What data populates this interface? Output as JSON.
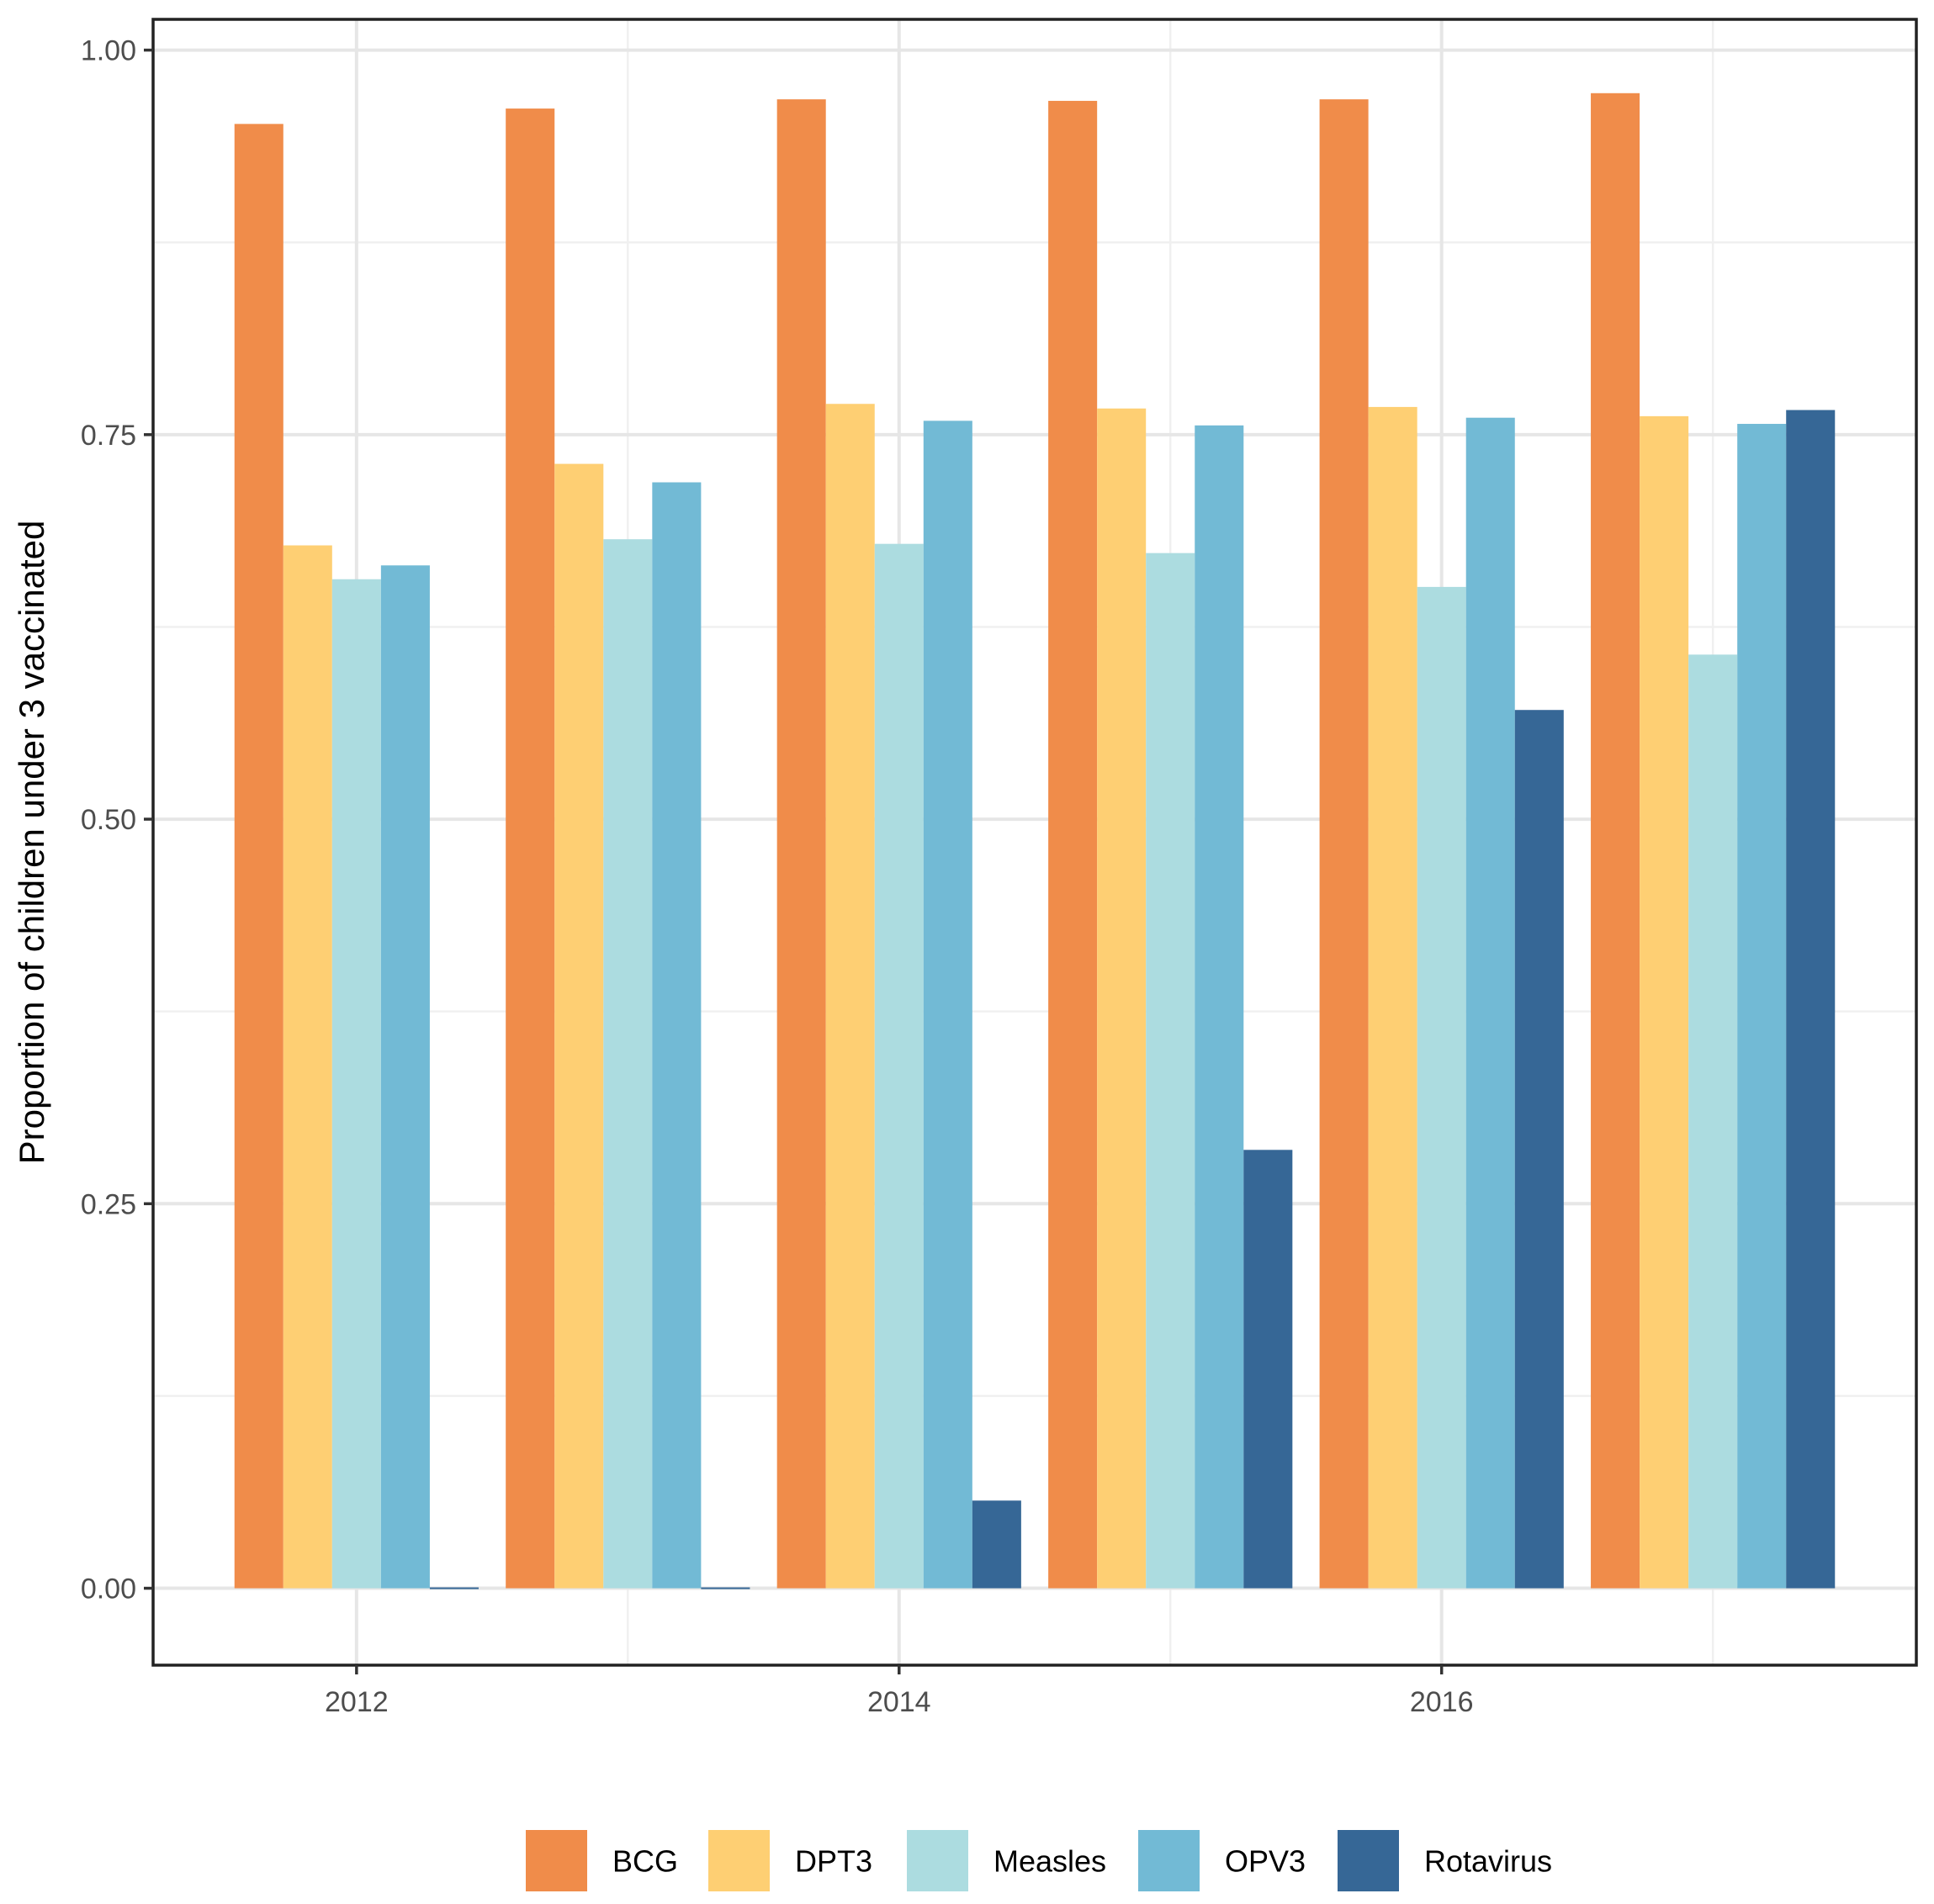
{
  "chart_data": {
    "type": "bar",
    "title": "",
    "xlabel": "",
    "ylabel": "Proportion of children under 3 vaccinated",
    "ylim": [
      -0.05,
      1.02
    ],
    "grid": true,
    "legend_position": "bottom",
    "x_years": [
      2012,
      2013,
      2014,
      2015,
      2016,
      2017
    ],
    "x_ticks": [
      2012,
      2014,
      2016
    ],
    "x_tick_labels": [
      "2012",
      "2014",
      "2016"
    ],
    "y_ticks": [
      0,
      0.25,
      0.5,
      0.75,
      1.0
    ],
    "y_tick_labels": [
      "0.00",
      "0.25",
      "0.50",
      "0.75",
      "1.00"
    ],
    "series": [
      {
        "name": "BCG",
        "color": "#F08C4A",
        "values": [
          0.952,
          0.962,
          0.968,
          0.967,
          0.968,
          0.972
        ]
      },
      {
        "name": "DPT3",
        "color": "#FECF73",
        "values": [
          0.678,
          0.731,
          0.77,
          0.767,
          0.768,
          0.762
        ]
      },
      {
        "name": "Measles",
        "color": "#ACDCE0",
        "values": [
          0.656,
          0.682,
          0.679,
          0.673,
          0.651,
          0.607
        ]
      },
      {
        "name": "OPV3",
        "color": "#72BAD5",
        "values": [
          0.665,
          0.719,
          0.759,
          0.756,
          0.761,
          0.757
        ]
      },
      {
        "name": "Rotavirus",
        "color": "#366796",
        "values": [
          0.0,
          0.0,
          0.057,
          0.285,
          0.571,
          0.766
        ]
      }
    ]
  },
  "colors": {
    "panel_border": "#222222",
    "grid_major": "#E6E6E6",
    "grid_minor": "#F0F0F0",
    "tick": "#333333"
  }
}
